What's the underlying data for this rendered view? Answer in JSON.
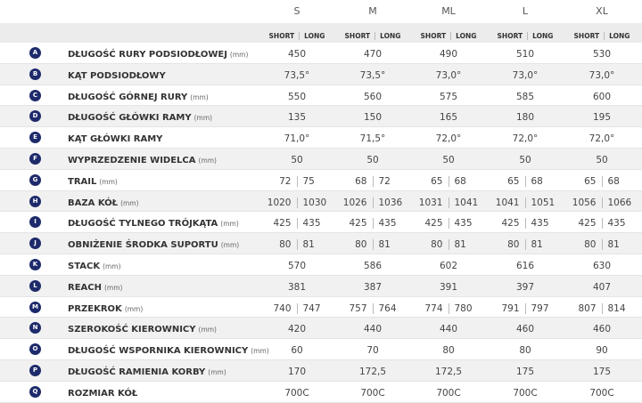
{
  "header": {
    "sizes": [
      "S",
      "M",
      "ML",
      "L",
      "XL"
    ],
    "sub": [
      "SHORT",
      "LONG"
    ]
  },
  "rows": [
    {
      "letter": "A",
      "label": "DŁUGOŚĆ RURY PODSIODŁOWEJ",
      "unit": "(mm)",
      "values": [
        "450",
        "470",
        "490",
        "510",
        "530"
      ]
    },
    {
      "letter": "B",
      "label": "KĄT PODSIODŁOWY",
      "values": [
        "73,5°",
        "73,5°",
        "73,0°",
        "73,0°",
        "73,0°"
      ]
    },
    {
      "letter": "C",
      "label": "DŁUGOŚĆ GÓRNEJ RURY",
      "unit": "(mm)",
      "values": [
        "550",
        "560",
        "575",
        "585",
        "600"
      ]
    },
    {
      "letter": "D",
      "label": "DŁUGOŚĆ GŁÓWKI RAMY",
      "unit": "(mm)",
      "values": [
        "135",
        "150",
        "165",
        "180",
        "195"
      ]
    },
    {
      "letter": "E",
      "label": "KĄT GŁÓWKI RAMY",
      "values": [
        "71,0°",
        "71,5°",
        "72,0°",
        "72,0°",
        "72,0°"
      ]
    },
    {
      "letter": "F",
      "label": "WYPRZEDZENIE WIDELCA",
      "unit": "(mm)",
      "values": [
        "50",
        "50",
        "50",
        "50",
        "50"
      ]
    },
    {
      "letter": "G",
      "label": "TRAIL",
      "unit": "(mm)",
      "values": [
        [
          "72",
          "75"
        ],
        [
          "68",
          "72"
        ],
        [
          "65",
          "68"
        ],
        [
          "65",
          "68"
        ],
        [
          "65",
          "68"
        ]
      ]
    },
    {
      "letter": "H",
      "label": "BAZA KÓŁ",
      "unit": "(mm)",
      "values": [
        [
          "1020",
          "1030"
        ],
        [
          "1026",
          "1036"
        ],
        [
          "1031",
          "1041"
        ],
        [
          "1041",
          "1051"
        ],
        [
          "1056",
          "1066"
        ]
      ]
    },
    {
      "letter": "I",
      "label": "DŁUGOŚĆ TYLNEGO TRÓJKĄTA",
      "unit": "(mm)",
      "values": [
        [
          "425",
          "435"
        ],
        [
          "425",
          "435"
        ],
        [
          "425",
          "435"
        ],
        [
          "425",
          "435"
        ],
        [
          "425",
          "435"
        ]
      ]
    },
    {
      "letter": "J",
      "label": "OBNIŻENIE ŚRODKA SUPORTU",
      "unit": "(mm)",
      "values": [
        [
          "80",
          "81"
        ],
        [
          "80",
          "81"
        ],
        [
          "80",
          "81"
        ],
        [
          "80",
          "81"
        ],
        [
          "80",
          "81"
        ]
      ]
    },
    {
      "letter": "K",
      "label": "STACK",
      "unit": "(mm)",
      "values": [
        "570",
        "586",
        "602",
        "616",
        "630"
      ]
    },
    {
      "letter": "L",
      "label": "REACH",
      "unit": "(mm)",
      "values": [
        "381",
        "387",
        "391",
        "397",
        "407"
      ]
    },
    {
      "letter": "M",
      "label": "PRZEKROK",
      "unit": "(mm)",
      "values": [
        [
          "740",
          "747"
        ],
        [
          "757",
          "764"
        ],
        [
          "774",
          "780"
        ],
        [
          "791",
          "797"
        ],
        [
          "807",
          "814"
        ]
      ]
    },
    {
      "letter": "N",
      "label": "SZEROKOŚĆ KIEROWNICY",
      "unit": "(mm)",
      "values": [
        "420",
        "440",
        "440",
        "460",
        "460"
      ]
    },
    {
      "letter": "O",
      "label": "DŁUGOŚĆ WSPORNIKA KIEROWNICY",
      "unit": "(mm)",
      "values": [
        "60",
        "70",
        "80",
        "80",
        "90"
      ]
    },
    {
      "letter": "P",
      "label": "DŁUGOŚĆ RAMIENIA KORBY",
      "unit": "(mm)",
      "values": [
        "170",
        "172,5",
        "172,5",
        "175",
        "175"
      ]
    },
    {
      "letter": "Q",
      "label": "ROZMIAR KÓŁ",
      "values": [
        "700C",
        "700C",
        "700C",
        "700C",
        "700C"
      ]
    }
  ]
}
